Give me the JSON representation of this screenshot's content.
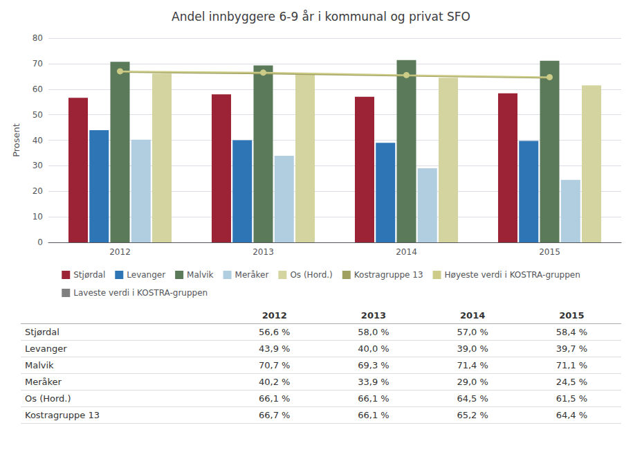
{
  "chart_data": {
    "type": "bar",
    "title": "Andel innbyggere 6-9 år i kommunal og privat SFO",
    "categories": [
      "2012",
      "2013",
      "2014",
      "2015"
    ],
    "ylabel": "Prosent",
    "ylim": [
      0,
      80
    ],
    "yticks": [
      0,
      10,
      20,
      30,
      40,
      50,
      60,
      70,
      80
    ],
    "grid": true,
    "legend": "bottom",
    "series": [
      {
        "name": "Stjørdal",
        "type": "bar",
        "color": "#9B2335",
        "values": [
          56.6,
          58.0,
          57.0,
          58.4
        ],
        "value_labels": [
          "56,6 %",
          "58,0 %",
          "57,0 %",
          "58,4 %"
        ]
      },
      {
        "name": "Levanger",
        "type": "bar",
        "color": "#2E75B6",
        "values": [
          43.9,
          40.0,
          39.0,
          39.7
        ],
        "value_labels": [
          "43,9 %",
          "40,0 %",
          "39,0 %",
          "39,7 %"
        ]
      },
      {
        "name": "Malvik",
        "type": "bar",
        "color": "#5A7A5A",
        "values": [
          70.7,
          69.3,
          71.4,
          71.1
        ],
        "value_labels": [
          "70,7 %",
          "69,3 %",
          "71,4 %",
          "71,1 %"
        ]
      },
      {
        "name": "Meråker",
        "type": "bar",
        "color": "#B0CEE0",
        "values": [
          40.2,
          33.9,
          29.0,
          24.5
        ],
        "value_labels": [
          "40,2 %",
          "33,9 %",
          "29,0 %",
          "24,5 %"
        ]
      },
      {
        "name": "Os (Hord.)",
        "type": "bar",
        "color": "#D4D4A0",
        "values": [
          66.1,
          66.1,
          64.5,
          61.5
        ],
        "value_labels": [
          "66,1 %",
          "66,1 %",
          "64,5 %",
          "61,5 %"
        ]
      },
      {
        "name": "Kostragruppe 13",
        "type": "line",
        "color": "#A0A060",
        "values": [
          66.7,
          66.1,
          65.2,
          64.4
        ],
        "value_labels": [
          "66,7 %",
          "66,1 %",
          "65,2 %",
          "64,4 %"
        ]
      },
      {
        "name": "Høyeste verdi i KOSTRA-gruppen",
        "type": "line",
        "marker": "circle",
        "color": "#CCCC88",
        "values": [
          67.0,
          66.5,
          65.5,
          64.7
        ]
      },
      {
        "name": "Laveste verdi i KOSTRA-gruppen",
        "type": "line",
        "color": "#808080",
        "values": [
          null,
          null,
          null,
          null
        ]
      }
    ]
  }
}
